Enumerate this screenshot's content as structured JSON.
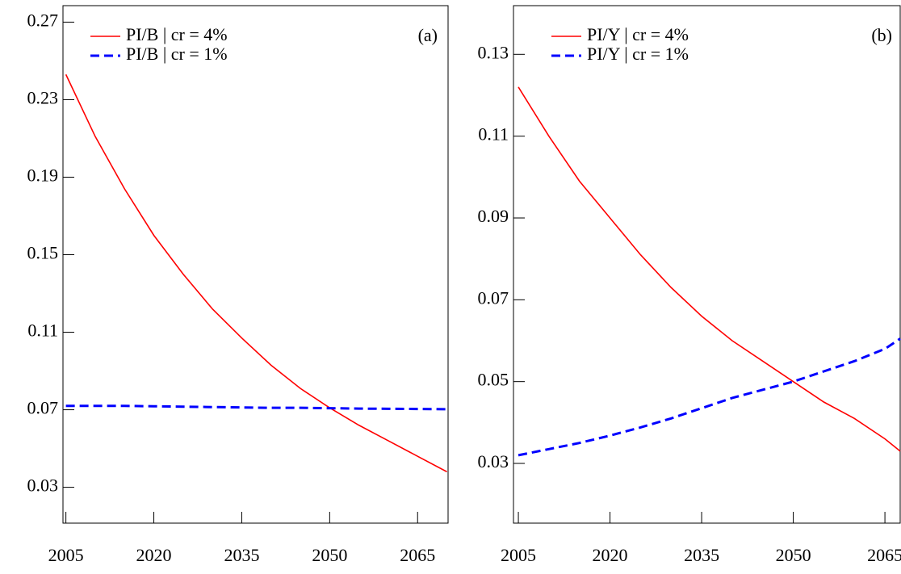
{
  "chart_data": [
    {
      "type": "line",
      "panel_label": "(a)",
      "x": [
        2005,
        2010,
        2015,
        2020,
        2025,
        2030,
        2035,
        2040,
        2045,
        2050,
        2055,
        2060,
        2065,
        2070
      ],
      "series": [
        {
          "name": "PI/B | cr = 4%",
          "color": "#ff0000",
          "dash": false,
          "values": [
            0.243,
            0.211,
            0.184,
            0.16,
            0.14,
            0.122,
            0.107,
            0.093,
            0.081,
            0.071,
            0.062,
            0.054,
            0.046,
            0.038
          ]
        },
        {
          "name": "PI/B | cr = 1%",
          "color": "#0000ff",
          "dash": true,
          "values": [
            0.072,
            0.072,
            0.072,
            0.0718,
            0.0716,
            0.0714,
            0.0712,
            0.071,
            0.071,
            0.0708,
            0.0706,
            0.0705,
            0.0704,
            0.0703
          ]
        }
      ],
      "xlim": [
        2004.5,
        2070.2
      ],
      "xticks": [
        2005,
        2020,
        2035,
        2050,
        2065
      ],
      "ylim": [
        0.0115,
        0.2785
      ],
      "yticks": [
        0.03,
        0.07,
        0.11,
        0.15,
        0.19,
        0.23,
        0.27
      ]
    },
    {
      "type": "line",
      "panel_label": "(b)",
      "x": [
        2005,
        2010,
        2015,
        2020,
        2025,
        2030,
        2035,
        2040,
        2045,
        2050,
        2055,
        2060,
        2065,
        2067.5
      ],
      "series": [
        {
          "name": "PI/Y | cr = 4%",
          "color": "#ff0000",
          "dash": false,
          "values": [
            0.122,
            0.11,
            0.099,
            0.09,
            0.081,
            0.073,
            0.066,
            0.06,
            0.055,
            0.05,
            0.045,
            0.041,
            0.036,
            0.033
          ]
        },
        {
          "name": "PI/Y | cr = 1%",
          "color": "#0000ff",
          "dash": true,
          "values": [
            0.032,
            0.0335,
            0.035,
            0.0368,
            0.0388,
            0.041,
            0.0435,
            0.046,
            0.048,
            0.05,
            0.0525,
            0.055,
            0.058,
            0.0605
          ]
        }
      ],
      "xlim": [
        2004.2,
        2067.5
      ],
      "xticks": [
        2005,
        2020,
        2035,
        2050,
        2065
      ],
      "ylim": [
        0.0154,
        0.1419
      ],
      "yticks": [
        0.03,
        0.05,
        0.07,
        0.09,
        0.11,
        0.13
      ]
    }
  ]
}
